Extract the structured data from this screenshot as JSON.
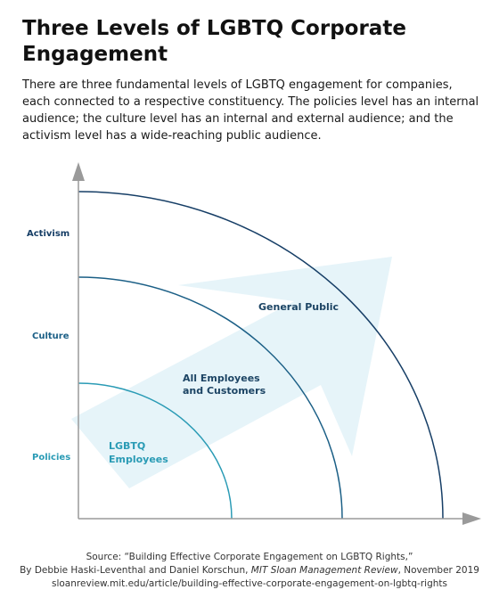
{
  "title": "Three Levels of LGBTQ Corporate Engagement",
  "description": "There are three fundamental levels of LGBTQ engagement for companies, each connected to a respective constituency. The policies level has an internal audience; the culture level has an internal and external audience; and the activism level has a wide-reaching public audience.",
  "levels": [
    {
      "label": "Policies",
      "audience_line1": "LGBTQ",
      "audience_line2": "Employees",
      "color": "#2a9bb5"
    },
    {
      "label": "Culture",
      "audience_line1": "All Employees",
      "audience_line2": "and Customers",
      "color": "#1b5f86"
    },
    {
      "label": "Activism",
      "audience_line1": "General Public",
      "audience_line2": "",
      "color": "#163e66"
    }
  ],
  "colors": {
    "arrow_fill": "#e6f4f9",
    "axis": "#9a9a9a",
    "audience_text": "#1c4464"
  },
  "source": {
    "line1": "Source: “Building Effective Corporate Engagement on LGBTQ Rights,”",
    "line2_prefix": "By Debbie Haski-Leventhal and Daniel Korschun, ",
    "line2_journal": "MIT Sloan Management Review",
    "line2_suffix": ", November 2019",
    "line3": "sloanreview.mit.edu/article/building-effective-corporate-engagement-on-lgbtq-rights"
  }
}
